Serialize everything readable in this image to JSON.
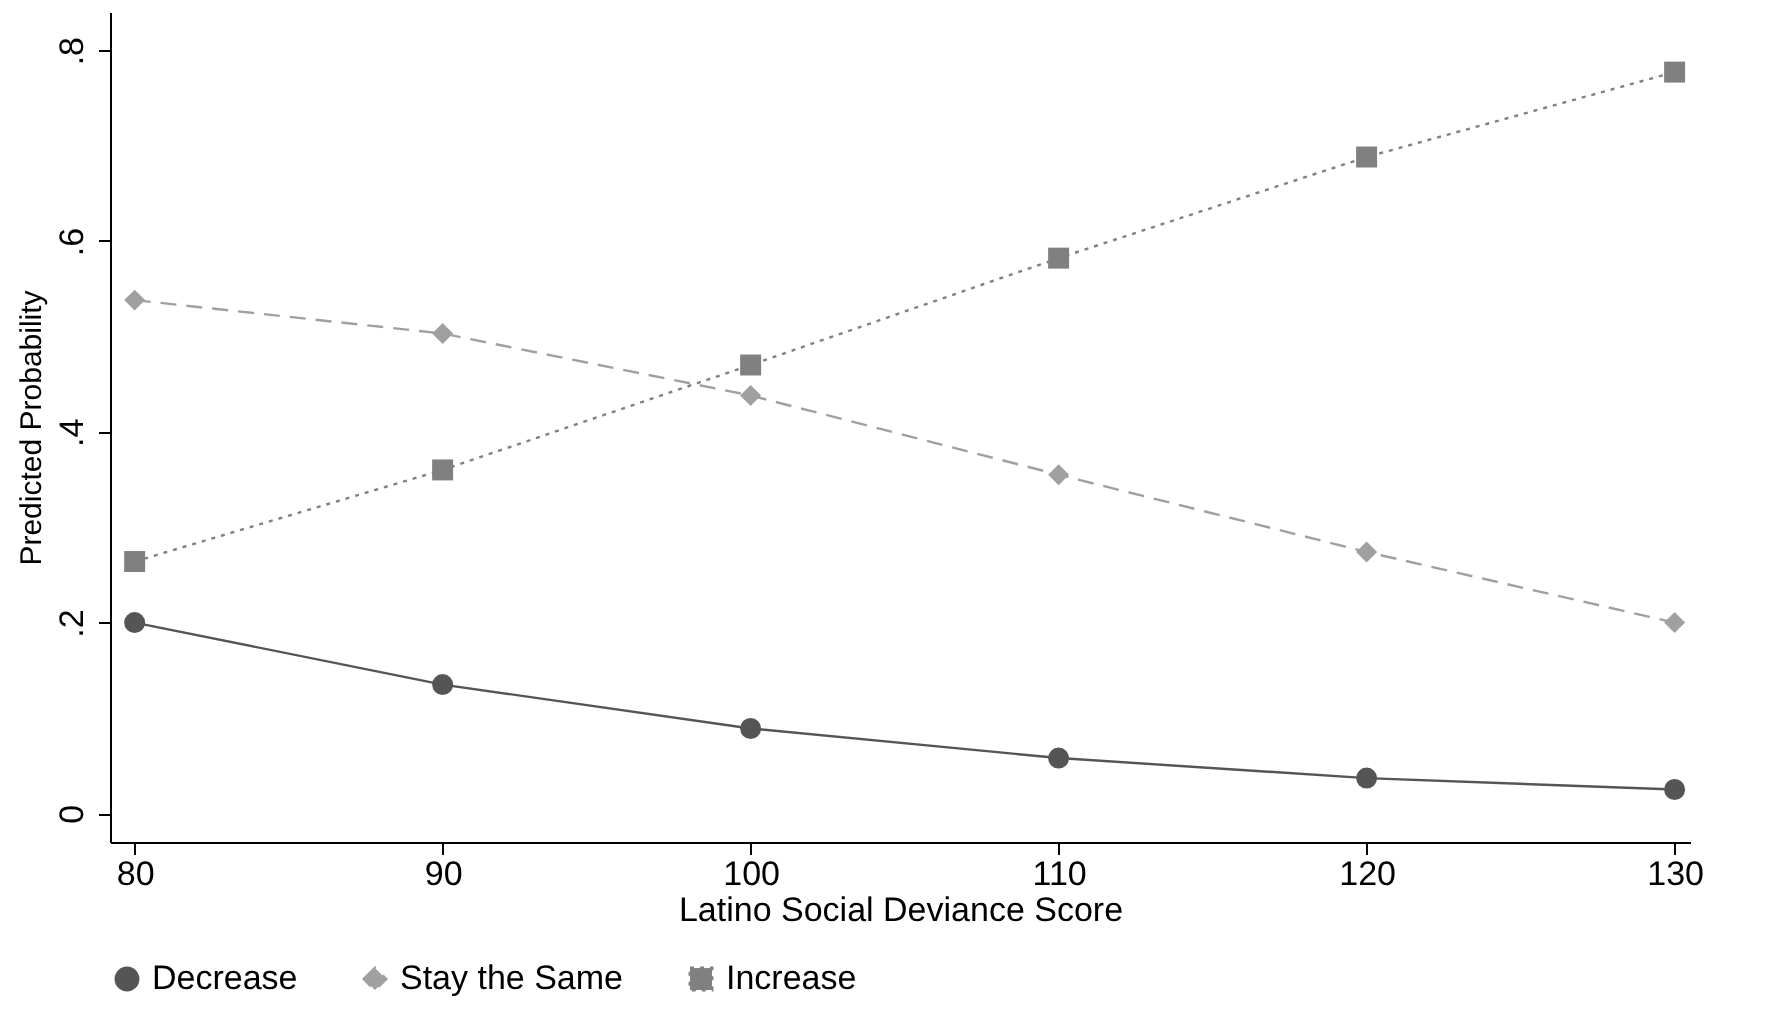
{
  "chart_data": {
    "type": "line",
    "xlabel": "Latino Social Deviance Score",
    "ylabel": "Predicted Probability",
    "x": [
      80,
      90,
      100,
      110,
      120,
      130
    ],
    "series": [
      {
        "name": "Decrease",
        "color": "#555555",
        "marker": "circle",
        "line_style": "solid",
        "values": [
          0.2,
          0.135,
          0.089,
          0.058,
          0.037,
          0.025
        ]
      },
      {
        "name": "Stay the Same",
        "color": "#a0a0a0",
        "marker": "diamond",
        "line_style": "dashed",
        "values": [
          0.538,
          0.503,
          0.438,
          0.355,
          0.274,
          0.2
        ]
      },
      {
        "name": "Increase",
        "color": "#808080",
        "marker": "square",
        "line_style": "dotted",
        "values": [
          0.264,
          0.36,
          0.47,
          0.582,
          0.688,
          0.777
        ]
      }
    ],
    "xlim": [
      79.2,
      130.5
    ],
    "xticks": [
      80,
      90,
      100,
      110,
      120,
      130
    ],
    "ylim": [
      -0.03,
      0.84
    ],
    "yticks": [
      {
        "value": 0,
        "label": "0"
      },
      {
        "value": 0.2,
        "label": ".2"
      },
      {
        "value": 0.4,
        "label": ".4"
      },
      {
        "value": 0.6,
        "label": ".6"
      },
      {
        "value": 0.8,
        "label": ".8"
      }
    ],
    "grid": false,
    "legend": "bottom"
  }
}
